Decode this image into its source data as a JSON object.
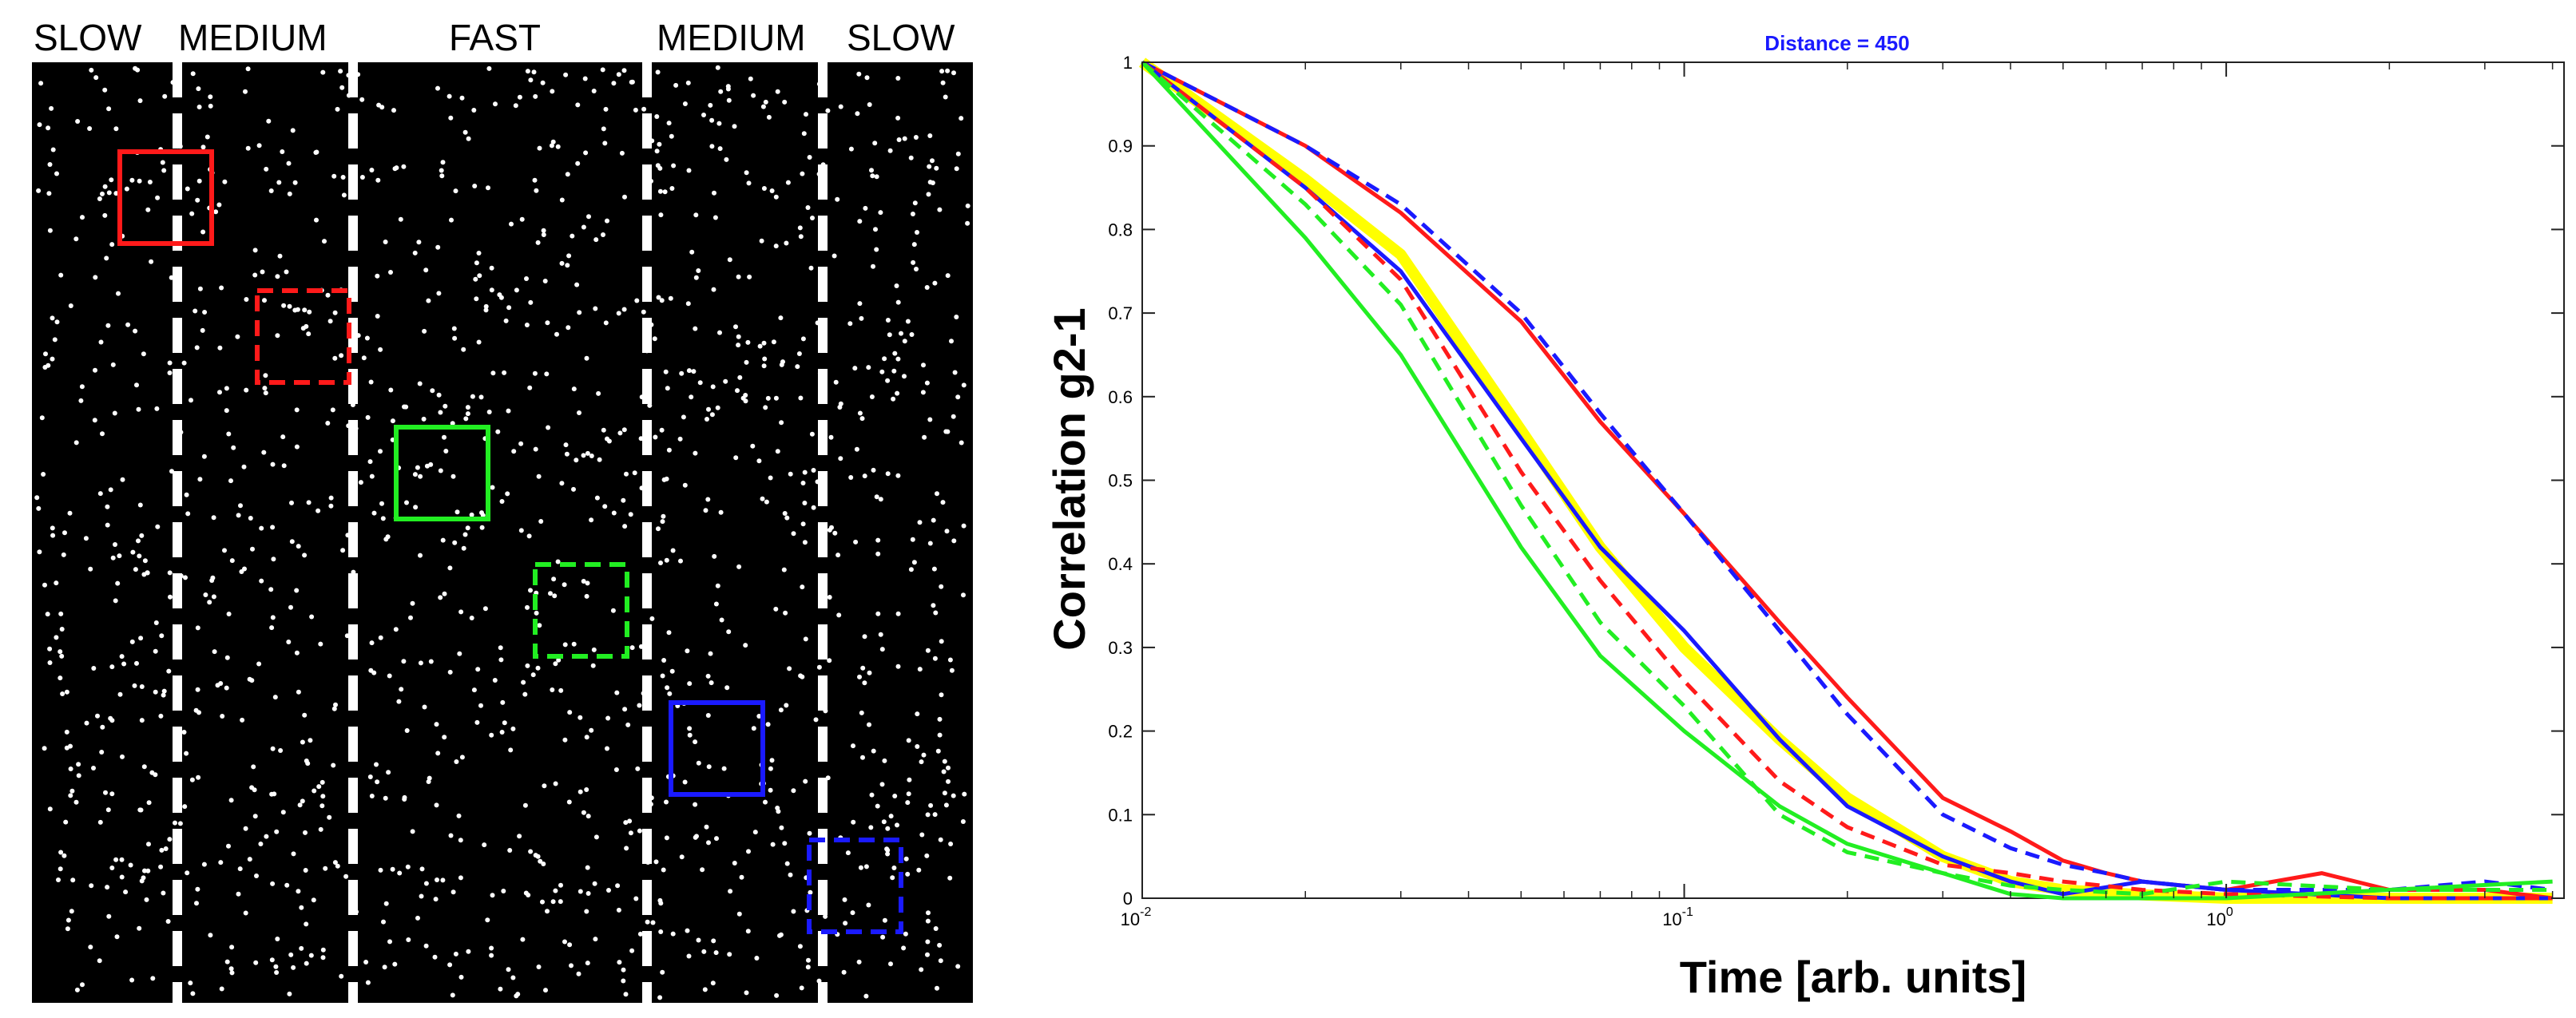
{
  "left_panel": {
    "zone_labels": [
      "SLOW",
      "MEDIUM",
      "FAST",
      "MEDIUM",
      "SLOW"
    ],
    "background": "#000000",
    "particle_color": "#ffffff",
    "roi_boxes": [
      {
        "color": "#ff1a1a",
        "style": "solid"
      },
      {
        "color": "#ff1a1a",
        "style": "dashed"
      },
      {
        "color": "#22ee22",
        "style": "solid"
      },
      {
        "color": "#22ee22",
        "style": "dashed"
      },
      {
        "color": "#1a1aff",
        "style": "solid"
      },
      {
        "color": "#1a1aff",
        "style": "dashed"
      }
    ]
  },
  "chart_data": {
    "type": "line",
    "title": "Distance = 450",
    "xlabel": "Time [arb. units]",
    "ylabel": "Correlation g2-1",
    "x_scale": "log",
    "xlim": [
      0.01,
      4.2
    ],
    "ylim": [
      0,
      1
    ],
    "y_ticks": [
      "0",
      "0.1",
      "0.2",
      "0.3",
      "0.4",
      "0.5",
      "0.6",
      "0.7",
      "0.8",
      "0.9",
      "1"
    ],
    "x_ticks": [
      {
        "base": "10",
        "exp": "-2",
        "value": 0.01
      },
      {
        "base": "10",
        "exp": "-1",
        "value": 0.1
      },
      {
        "base": "10",
        "exp": "0",
        "value": 1
      }
    ],
    "grid": false,
    "series": [
      {
        "color": "#ffff00",
        "style": "solid",
        "width": 14,
        "x": [
          0.01,
          0.02,
          0.03,
          0.05,
          0.07,
          0.1,
          0.15,
          0.2,
          0.3,
          0.4,
          0.5,
          0.7,
          1,
          2,
          4
        ],
        "y": [
          1,
          0.86,
          0.77,
          0.56,
          0.42,
          0.3,
          0.19,
          0.12,
          0.05,
          0.02,
          0.01,
          0.004,
          0,
          0,
          0
        ]
      },
      {
        "color": "#ff1a1a",
        "style": "solid",
        "width": 5,
        "x": [
          0.01,
          0.02,
          0.03,
          0.05,
          0.07,
          0.1,
          0.15,
          0.2,
          0.3,
          0.4,
          0.5,
          0.6,
          0.7,
          1,
          1.5,
          2,
          3,
          4
        ],
        "y": [
          1,
          0.9,
          0.82,
          0.69,
          0.57,
          0.46,
          0.33,
          0.24,
          0.12,
          0.08,
          0.045,
          0.03,
          0.02,
          0.01,
          0.03,
          0.01,
          0.01,
          0
        ]
      },
      {
        "color": "#1a1aff",
        "style": "dashed",
        "width": 5,
        "x": [
          0.01,
          0.02,
          0.03,
          0.05,
          0.07,
          0.1,
          0.15,
          0.2,
          0.3,
          0.4,
          0.5,
          0.6,
          0.7,
          1,
          2,
          3,
          4
        ],
        "y": [
          1,
          0.9,
          0.83,
          0.7,
          0.58,
          0.46,
          0.32,
          0.22,
          0.1,
          0.06,
          0.04,
          0.03,
          0.02,
          0.01,
          0.01,
          0.02,
          0.01
        ]
      },
      {
        "color": "#1a1aff",
        "style": "solid",
        "width": 5,
        "x": [
          0.01,
          0.02,
          0.03,
          0.05,
          0.07,
          0.1,
          0.15,
          0.2,
          0.3,
          0.4,
          0.5,
          0.7,
          1,
          2,
          4
        ],
        "y": [
          1,
          0.85,
          0.75,
          0.55,
          0.42,
          0.32,
          0.19,
          0.11,
          0.05,
          0.02,
          0.005,
          0.02,
          0.01,
          0,
          0
        ]
      },
      {
        "color": "#ff1a1a",
        "style": "dashed",
        "width": 5,
        "x": [
          0.01,
          0.02,
          0.03,
          0.05,
          0.07,
          0.1,
          0.15,
          0.2,
          0.3,
          0.4,
          0.5,
          0.7,
          1,
          2,
          4
        ],
        "y": [
          1,
          0.85,
          0.74,
          0.51,
          0.38,
          0.26,
          0.14,
          0.085,
          0.04,
          0.03,
          0.02,
          0.01,
          0.005,
          0,
          0
        ]
      },
      {
        "color": "#22ee22",
        "style": "dashed",
        "width": 5,
        "x": [
          0.01,
          0.02,
          0.03,
          0.05,
          0.07,
          0.1,
          0.15,
          0.2,
          0.3,
          0.4,
          0.5,
          0.7,
          1,
          2,
          4
        ],
        "y": [
          1,
          0.83,
          0.71,
          0.47,
          0.33,
          0.23,
          0.1,
          0.055,
          0.03,
          0.015,
          0.01,
          0.005,
          0.02,
          0.01,
          0.01
        ]
      },
      {
        "color": "#22ee22",
        "style": "solid",
        "width": 5,
        "x": [
          0.01,
          0.02,
          0.03,
          0.05,
          0.07,
          0.1,
          0.15,
          0.2,
          0.3,
          0.4,
          0.5,
          0.7,
          1,
          2,
          4
        ],
        "y": [
          1,
          0.79,
          0.65,
          0.42,
          0.29,
          0.2,
          0.11,
          0.065,
          0.03,
          0.005,
          0,
          0,
          0,
          0.01,
          0.02
        ]
      }
    ]
  }
}
